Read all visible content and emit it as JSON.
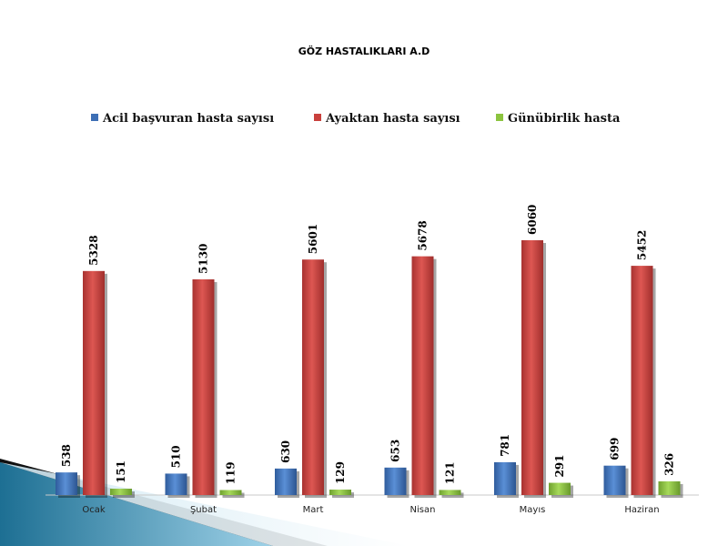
{
  "chart_data": {
    "type": "bar",
    "title": "GÖZ HASTALIKLARI A.D",
    "categories": [
      "Ocak",
      "Şubat",
      "Mart",
      "Nisan",
      "Mayıs",
      "Haziran"
    ],
    "series": [
      {
        "name": "Acil başvuran hasta sayısı",
        "values": [
          538,
          510,
          630,
          653,
          781,
          699
        ],
        "color": "#3d6fb5"
      },
      {
        "name": "Ayaktan hasta sayısı",
        "values": [
          5328,
          5130,
          5601,
          5678,
          6060,
          5452
        ],
        "color": "#c9403c"
      },
      {
        "name": "Günübirlik hasta",
        "values": [
          151,
          119,
          129,
          121,
          291,
          326
        ],
        "color": "#8cc43f"
      }
    ],
    "legend_position": "top",
    "grid": false,
    "ylim": [
      0,
      6060
    ]
  }
}
